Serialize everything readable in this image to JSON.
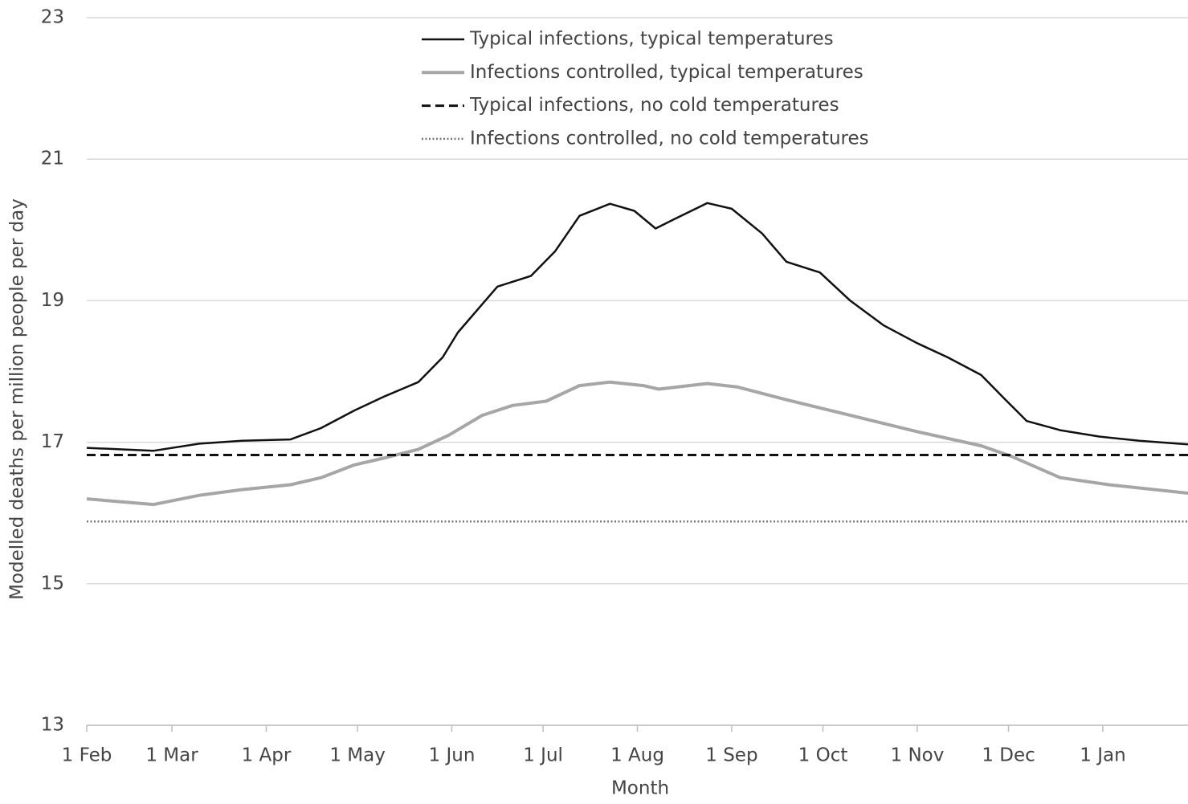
{
  "chart_data": {
    "type": "line",
    "xlabel": "Month",
    "ylabel": "Modelled deaths per million people per day",
    "xlim": [
      0,
      362
    ],
    "ylim": [
      13,
      23
    ],
    "xticks": [
      {
        "value": 0,
        "label": "1 Feb"
      },
      {
        "value": 28,
        "label": "1 Mar"
      },
      {
        "value": 59,
        "label": "1 Apr"
      },
      {
        "value": 89,
        "label": "1 May"
      },
      {
        "value": 120,
        "label": "1 Jun"
      },
      {
        "value": 150,
        "label": "1 Jul"
      },
      {
        "value": 181,
        "label": "1 Aug"
      },
      {
        "value": 212,
        "label": "1 Sep"
      },
      {
        "value": 242,
        "label": "1 Oct"
      },
      {
        "value": 273,
        "label": "1 Nov"
      },
      {
        "value": 303,
        "label": "1 Dec"
      },
      {
        "value": 334,
        "label": "1 Jan"
      }
    ],
    "yticks": [
      13,
      15,
      17,
      19,
      21,
      23
    ],
    "grid": true,
    "legend": "top",
    "series": [
      {
        "name": "Typical infections, typical temperatures",
        "color": "#111111",
        "style": "solid",
        "x": [
          0,
          22,
          37,
          51,
          67,
          77,
          88,
          98,
          109,
          117,
          122,
          130,
          135,
          146,
          154,
          162,
          172,
          180,
          187,
          193,
          204,
          212,
          222,
          230,
          241,
          251,
          262,
          273,
          283,
          294,
          302,
          309,
          320,
          333,
          346,
          362
        ],
        "values": [
          16.92,
          16.88,
          16.98,
          17.02,
          17.04,
          17.2,
          17.45,
          17.65,
          17.85,
          18.2,
          18.55,
          18.95,
          19.2,
          19.35,
          19.7,
          20.2,
          20.37,
          20.27,
          20.02,
          20.15,
          20.38,
          20.3,
          19.95,
          19.55,
          19.4,
          19.0,
          18.65,
          18.4,
          18.2,
          17.95,
          17.6,
          17.3,
          17.17,
          17.08,
          17.02,
          16.97
        ]
      },
      {
        "name": "Infections controlled, typical temperatures",
        "color": "#a6a6a6",
        "style": "solid",
        "x": [
          0,
          22,
          37,
          51,
          67,
          77,
          88,
          98,
          109,
          119,
          130,
          140,
          151,
          162,
          172,
          183,
          188,
          204,
          214,
          230,
          251,
          273,
          294,
          304,
          320,
          336,
          362
        ],
        "values": [
          16.2,
          16.12,
          16.25,
          16.33,
          16.4,
          16.5,
          16.68,
          16.78,
          16.9,
          17.1,
          17.38,
          17.52,
          17.58,
          17.8,
          17.85,
          17.8,
          17.75,
          17.83,
          17.78,
          17.6,
          17.38,
          17.15,
          16.95,
          16.8,
          16.5,
          16.4,
          16.28
        ]
      },
      {
        "name": "Typical infections, no cold temperatures",
        "color": "#111111",
        "style": "dashed",
        "x": [
          0,
          362
        ],
        "values": [
          16.82,
          16.82
        ]
      },
      {
        "name": "Infections controlled, no cold temperatures",
        "color": "#777777",
        "style": "dotted",
        "x": [
          0,
          362
        ],
        "values": [
          15.88,
          15.88
        ]
      }
    ]
  }
}
